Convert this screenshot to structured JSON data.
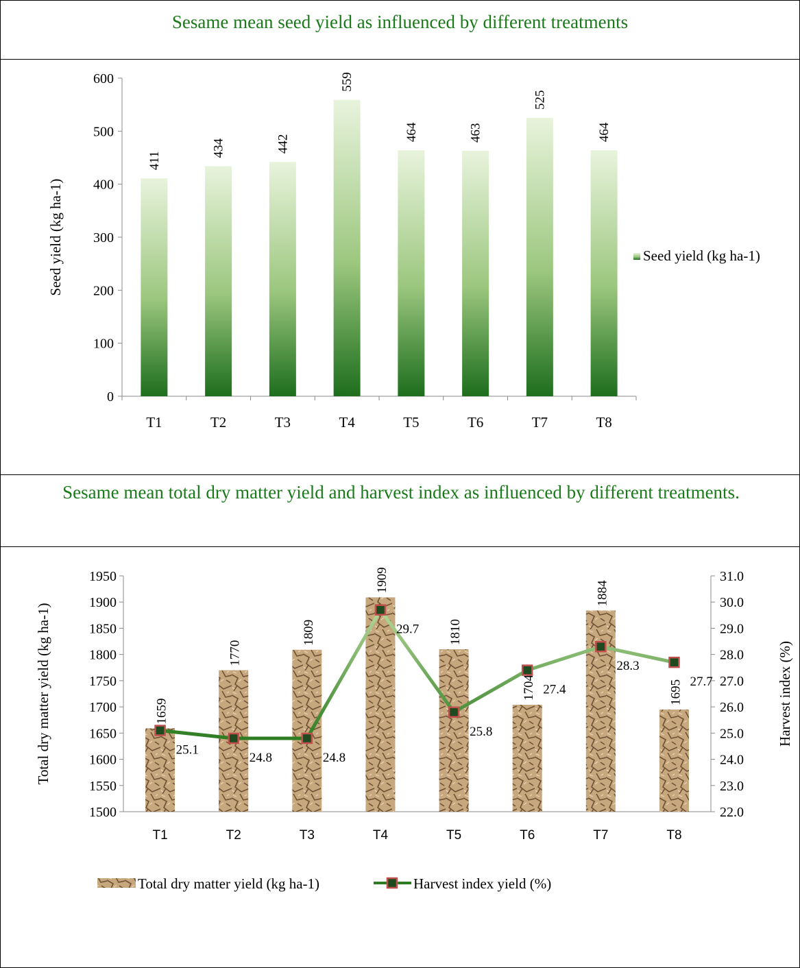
{
  "chart_data": [
    {
      "type": "bar",
      "title": "Sesame mean seed yield as influenced by different treatments",
      "ylabel": "Seed yield (kg ha-1)",
      "ylim": [
        0,
        600
      ],
      "yticks": [
        0,
        100,
        200,
        300,
        400,
        500,
        600
      ],
      "categories": [
        "T1",
        "T2",
        "T3",
        "T4",
        "T5",
        "T6",
        "T7",
        "T8"
      ],
      "series": [
        {
          "name": "Seed yield (kg ha-1)",
          "values": [
            411,
            434,
            442,
            559,
            464,
            463,
            525,
            464
          ]
        }
      ],
      "data_labels": [
        "411",
        "434",
        "442",
        "559",
        "464",
        "463",
        "525",
        "464"
      ],
      "legend_position": "right",
      "colors": {
        "bar_dark": "#1d6e1d",
        "bar_light": "#e8f3dc"
      }
    },
    {
      "type": "bar",
      "title": "Sesame mean total dry matter yield and harvest index as influenced by different treatments.",
      "ylabel": "Total dry matter yield (kg ha-1)",
      "y2label": "Harvest  index (%)",
      "ylim": [
        1500,
        1950
      ],
      "yticks": [
        1500,
        1550,
        1600,
        1650,
        1700,
        1750,
        1800,
        1850,
        1900,
        1950
      ],
      "y2lim": [
        22.0,
        31.0
      ],
      "y2ticks": [
        "22.0",
        "23.0",
        "24.0",
        "25.0",
        "26.0",
        "27.0",
        "28.0",
        "29.0",
        "30.0",
        "31.0"
      ],
      "categories": [
        "T1",
        "T2",
        "T3",
        "T4",
        "T5",
        "T6",
        "T7",
        "T8"
      ],
      "series": [
        {
          "name": "Total dry matter yield (kg ha-1)",
          "type": "bar",
          "axis": "left",
          "values": [
            1659,
            1770,
            1809,
            1909,
            1810,
            1704,
            1884,
            1695
          ],
          "data_labels": [
            "1659",
            "1770",
            "1809",
            "1909",
            "1810",
            "1704",
            "1884",
            "1695"
          ]
        },
        {
          "name": "Harvest index yield (%)",
          "type": "line",
          "axis": "right",
          "values": [
            25.1,
            24.8,
            24.8,
            29.7,
            25.8,
            27.4,
            28.3,
            27.7
          ],
          "data_labels": [
            "25.1",
            "24.8",
            "24.8",
            "29.7",
            "25.8",
            "27.4",
            "28.3",
            "27.7"
          ]
        }
      ],
      "legend_position": "bottom",
      "colors": {
        "bar": "#b58f63",
        "line_dark": "#2f7d22",
        "line_light": "#b5d89a",
        "marker_fill": "#1f4a1f",
        "marker_edge": "#c0504d"
      }
    }
  ]
}
